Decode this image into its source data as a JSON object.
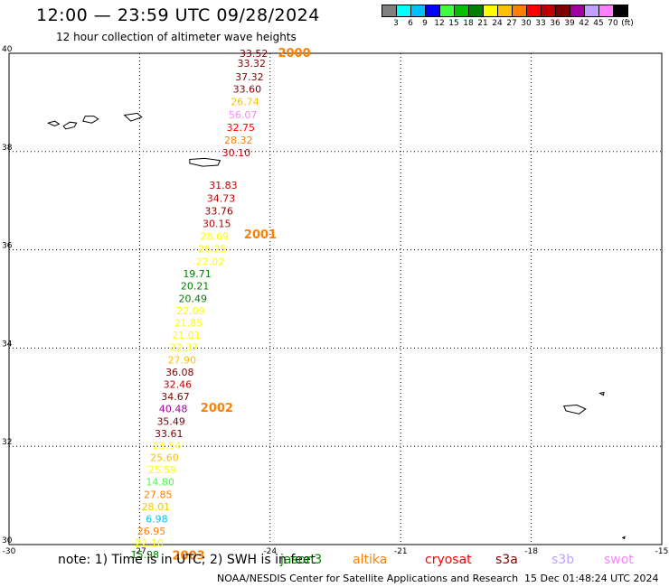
{
  "header": {
    "title": "12:00 — 23:59 UTC 09/28/2024",
    "subtitle": "12 hour collection of altimeter wave heights"
  },
  "colorbar": {
    "colors": [
      "#808080",
      "#00ffff",
      "#00c0ff",
      "#0000ff",
      "#40ff40",
      "#00c000",
      "#008000",
      "#ffff00",
      "#ffc000",
      "#ff8000",
      "#ff0000",
      "#c00000",
      "#800000",
      "#a000a0",
      "#c0a0ff",
      "#ff80ff",
      "#000000"
    ],
    "labels": [
      "3",
      "6",
      "9",
      "12",
      "15",
      "18",
      "21",
      "24",
      "27",
      "30",
      "33",
      "36",
      "39",
      "42",
      "45",
      "70",
      "(ft)"
    ]
  },
  "footer": {
    "note": "note:  1) Time is in UTC; 2) SWH is in feet",
    "satellites": [
      {
        "name": "jason3",
        "color": "#008000"
      },
      {
        "name": "altika",
        "color": "#ff8000"
      },
      {
        "name": "cryosat",
        "color": "#ff0000"
      },
      {
        "name": "s3a",
        "color": "#800000"
      },
      {
        "name": "s3b",
        "color": "#c0a0ff"
      },
      {
        "name": "swot",
        "color": "#ff80ff"
      }
    ],
    "credit": "NOAA/NESDIS Center for Satellite Applications and Research",
    "timestamp": "15 Dec 01:48:24 UTC 2024"
  },
  "chart_data": {
    "type": "scatter",
    "title": "12:00 — 23:59 UTC 09/28/2024",
    "subtitle": "12 hour collection of altimeter wave heights",
    "xlabel": "",
    "ylabel": "",
    "xlim": [
      -30,
      -15
    ],
    "ylim": [
      30,
      40
    ],
    "x_ticks": [
      "-30",
      "-27",
      "-24",
      "-21",
      "-18",
      "-15"
    ],
    "y_ticks": [
      "30",
      "32",
      "34",
      "36",
      "38",
      "40"
    ],
    "grid": true,
    "points": [
      {
        "lon": -24.05,
        "lat": 39.93,
        "value": "33.52",
        "color": "#800000"
      },
      {
        "lon": -24.1,
        "lat": 39.72,
        "value": "33.32",
        "color": "#800000"
      },
      {
        "lon": -24.15,
        "lat": 39.45,
        "value": "37.32",
        "color": "#800000"
      },
      {
        "lon": -24.2,
        "lat": 39.2,
        "value": "33.60",
        "color": "#800000"
      },
      {
        "lon": -24.25,
        "lat": 38.94,
        "value": "26.74",
        "color": "#ffc000"
      },
      {
        "lon": -24.3,
        "lat": 38.68,
        "value": "56.07",
        "color": "#ff80ff"
      },
      {
        "lon": -24.35,
        "lat": 38.42,
        "value": "32.75",
        "color": "#ff0000"
      },
      {
        "lon": -24.4,
        "lat": 38.16,
        "value": "28.32",
        "color": "#ff8000"
      },
      {
        "lon": -24.45,
        "lat": 37.9,
        "value": "30.10",
        "color": "#c00000"
      },
      {
        "lon": -24.75,
        "lat": 37.24,
        "value": "31.83",
        "color": "#c00000"
      },
      {
        "lon": -24.8,
        "lat": 36.98,
        "value": "34.73",
        "color": "#c00000"
      },
      {
        "lon": -24.85,
        "lat": 36.72,
        "value": "33.76",
        "color": "#800000"
      },
      {
        "lon": -24.9,
        "lat": 36.46,
        "value": "30.15",
        "color": "#c00000"
      },
      {
        "lon": -24.95,
        "lat": 36.2,
        "value": "28.69",
        "color": "#ffff00"
      },
      {
        "lon": -25.0,
        "lat": 35.95,
        "value": "26.25",
        "color": "#ffff00"
      },
      {
        "lon": -25.05,
        "lat": 35.69,
        "value": "22.02",
        "color": "#ffff00"
      },
      {
        "lon": -25.35,
        "lat": 35.44,
        "value": "19.71",
        "color": "#008000"
      },
      {
        "lon": -25.4,
        "lat": 35.19,
        "value": "20.21",
        "color": "#008000"
      },
      {
        "lon": -25.45,
        "lat": 34.94,
        "value": "20.49",
        "color": "#008000"
      },
      {
        "lon": -25.5,
        "lat": 34.69,
        "value": "22.09",
        "color": "#ffff00"
      },
      {
        "lon": -25.55,
        "lat": 34.44,
        "value": "21.85",
        "color": "#ffff00"
      },
      {
        "lon": -25.6,
        "lat": 34.19,
        "value": "21.01",
        "color": "#ffff00"
      },
      {
        "lon": -25.65,
        "lat": 33.94,
        "value": "22.37",
        "color": "#ffff00"
      },
      {
        "lon": -25.7,
        "lat": 33.69,
        "value": "27.90",
        "color": "#ffc000"
      },
      {
        "lon": -25.75,
        "lat": 33.44,
        "value": "36.08",
        "color": "#800000"
      },
      {
        "lon": -25.8,
        "lat": 33.19,
        "value": "32.46",
        "color": "#c00000"
      },
      {
        "lon": -25.85,
        "lat": 32.94,
        "value": "34.67",
        "color": "#800000"
      },
      {
        "lon": -25.9,
        "lat": 32.69,
        "value": "40.48",
        "color": "#a000a0"
      },
      {
        "lon": -25.95,
        "lat": 32.44,
        "value": "35.49",
        "color": "#800000"
      },
      {
        "lon": -26.0,
        "lat": 32.19,
        "value": "33.61",
        "color": "#800000"
      },
      {
        "lon": -26.05,
        "lat": 31.94,
        "value": "23.54",
        "color": "#ffff00"
      },
      {
        "lon": -26.1,
        "lat": 31.7,
        "value": "25.60",
        "color": "#ffc000"
      },
      {
        "lon": -26.15,
        "lat": 31.45,
        "value": "25.59",
        "color": "#ffff00"
      },
      {
        "lon": -26.2,
        "lat": 31.2,
        "value": "14.80",
        "color": "#40ff40"
      },
      {
        "lon": -26.25,
        "lat": 30.95,
        "value": "27.85",
        "color": "#ff8000"
      },
      {
        "lon": -26.3,
        "lat": 30.7,
        "value": "28.01",
        "color": "#ffc000"
      },
      {
        "lon": -26.35,
        "lat": 30.45,
        "value": "6.98",
        "color": "#00c0ff"
      },
      {
        "lon": -26.4,
        "lat": 30.2,
        "value": "26.95",
        "color": "#ff8000"
      },
      {
        "lon": -26.45,
        "lat": 29.96,
        "value": "22.10",
        "color": "#ffff00"
      },
      {
        "lon": -26.55,
        "lat": 29.72,
        "value": "15.98",
        "color": "#008000"
      }
    ],
    "time_labels": [
      {
        "lon": -23.82,
        "lat": 39.93,
        "text": "2000",
        "color": "#ff8000"
      },
      {
        "lon": -24.6,
        "lat": 36.23,
        "text": "2001",
        "color": "#ff8000"
      },
      {
        "lon": -25.6,
        "lat": 32.7,
        "text": "2002",
        "color": "#ff8000"
      },
      {
        "lon": -26.25,
        "lat": 29.7,
        "text": "2003",
        "color": "#ff8000"
      }
    ],
    "islands": [
      {
        "name": "",
        "outline": [
          [
            -29.1,
            38.58
          ],
          [
            -28.95,
            38.62
          ],
          [
            -28.85,
            38.56
          ],
          [
            -28.95,
            38.52
          ],
          [
            -29.1,
            38.58
          ]
        ]
      },
      {
        "name": "",
        "outline": [
          [
            -28.75,
            38.52
          ],
          [
            -28.6,
            38.6
          ],
          [
            -28.45,
            38.58
          ],
          [
            -28.5,
            38.5
          ],
          [
            -28.7,
            38.46
          ],
          [
            -28.75,
            38.52
          ]
        ]
      },
      {
        "name": "",
        "outline": [
          [
            -28.25,
            38.72
          ],
          [
            -28.05,
            38.72
          ],
          [
            -27.95,
            38.66
          ],
          [
            -28.1,
            38.58
          ],
          [
            -28.3,
            38.62
          ],
          [
            -28.25,
            38.72
          ]
        ]
      },
      {
        "name": "",
        "outline": [
          [
            -27.35,
            38.74
          ],
          [
            -27.05,
            38.78
          ],
          [
            -26.95,
            38.7
          ],
          [
            -27.2,
            38.62
          ],
          [
            -27.35,
            38.74
          ]
        ]
      },
      {
        "name": "",
        "outline": [
          [
            -25.85,
            37.84
          ],
          [
            -25.5,
            37.86
          ],
          [
            -25.15,
            37.82
          ],
          [
            -25.2,
            37.72
          ],
          [
            -25.55,
            37.7
          ],
          [
            -25.85,
            37.76
          ],
          [
            -25.85,
            37.84
          ]
        ]
      },
      {
        "name": "",
        "outline": [
          [
            -17.25,
            32.82
          ],
          [
            -16.95,
            32.84
          ],
          [
            -16.75,
            32.76
          ],
          [
            -16.9,
            32.66
          ],
          [
            -17.2,
            32.72
          ],
          [
            -17.25,
            32.82
          ]
        ]
      },
      {
        "name": "",
        "outline": [
          [
            -16.42,
            33.08
          ],
          [
            -16.33,
            33.1
          ],
          [
            -16.34,
            33.04
          ],
          [
            -16.42,
            33.08
          ]
        ]
      },
      {
        "name": "",
        "outline": [
          [
            -15.9,
            30.14
          ],
          [
            -15.85,
            30.16
          ],
          [
            -15.86,
            30.12
          ],
          [
            -15.9,
            30.14
          ]
        ]
      }
    ]
  }
}
